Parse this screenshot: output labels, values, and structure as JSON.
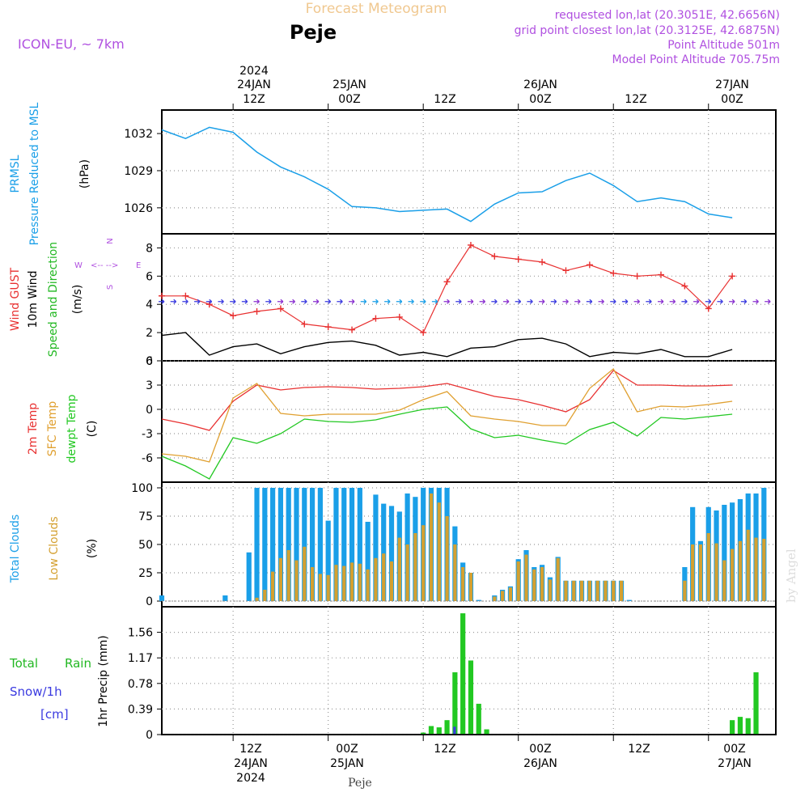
{
  "header": {
    "title": "Forecast Meteogram",
    "location": "Peje",
    "model": "ICON-EU, ~ 7km",
    "requested": "requested lon,lat (20.3051E, 42.6656N)",
    "grid": "grid point closest lon,lat (20.3125E, 42.6875N)",
    "point_alt": "Point Altitude 501m",
    "model_alt": "Model Point Altitude 705.75m",
    "footer": "Peje",
    "credit": "by Angel"
  },
  "time_axis": {
    "top_labels": [
      {
        "l1": "2024",
        "l2": "24JAN",
        "l3": "12Z"
      },
      {
        "l1": "",
        "l2": "25JAN",
        "l3": "00Z"
      },
      {
        "l1": "",
        "l2": "",
        "l3": "12Z"
      },
      {
        "l1": "",
        "l2": "26JAN",
        "l3": "00Z"
      },
      {
        "l1": "",
        "l2": "",
        "l3": "12Z"
      },
      {
        "l1": "",
        "l2": "27JAN",
        "l3": "00Z"
      }
    ],
    "bottom_labels": [
      {
        "l1": "12Z",
        "l2": "24JAN",
        "l3": "2024"
      },
      {
        "l1": "00Z",
        "l2": "25JAN",
        "l3": ""
      },
      {
        "l1": "12Z",
        "l2": "",
        "l3": ""
      },
      {
        "l1": "00Z",
        "l2": "26JAN",
        "l3": ""
      },
      {
        "l1": "12Z",
        "l2": "",
        "l3": ""
      },
      {
        "l1": "00Z",
        "l2": "27JAN",
        "l3": ""
      }
    ]
  },
  "panels": {
    "pressure": {
      "labels": [
        "PRMSL",
        "Pressure Reduced to MSL",
        "(hPa)"
      ],
      "colors": [
        "#1a9fe8",
        "#1a9fe8",
        "#000000"
      ]
    },
    "wind": {
      "labels": [
        "Wind GUST",
        "10m Wind",
        "Speed and Direction",
        "(m/s)"
      ],
      "colors": [
        "#e83030",
        "#000000",
        "#22b822",
        "#000000"
      ],
      "compass": {
        "n": "N",
        "s": "S",
        "w": "W",
        "e": "E"
      }
    },
    "temp": {
      "labels": [
        "2m Temp",
        "SFC Temp",
        "dewpt Temp",
        "(C)"
      ],
      "colors": [
        "#e83030",
        "#e0a030",
        "#22c822",
        "#000000"
      ]
    },
    "clouds": {
      "labels": [
        "Total Clouds",
        "Low Clouds",
        "(%)"
      ],
      "colors": [
        "#1a9fe8",
        "#d4a030",
        "#000000"
      ]
    },
    "precip": {
      "labels": [
        "Total",
        "Rain",
        "Snow/1h",
        "[cm]",
        "1hr Precip (mm)"
      ],
      "colors": [
        "#22b822",
        "#22b822",
        "#3a3ae0",
        "#3a3ae0",
        "#000000"
      ]
    }
  },
  "colors": {
    "pressure": "#1a9fe8",
    "gust": "#e83030",
    "wind": "#000000",
    "t2m": "#e83030",
    "sfc": "#e0a030",
    "dewpt": "#22c822",
    "total_clouds": "#1a9fe8",
    "low_clouds": "#d4a030",
    "rain": "#22c822",
    "snow": "#3a3ae0",
    "title": "#f0c890",
    "header_purple": "#b050e0"
  },
  "chart_data": [
    {
      "type": "line",
      "name": "PRMSL",
      "ylabel": "(hPa)",
      "ylim": [
        1023.9,
        1033.9
      ],
      "yticks": [
        1026,
        1029,
        1032
      ],
      "x_hours": [
        0,
        3,
        6,
        9,
        12,
        15,
        18,
        21,
        24,
        27,
        30,
        33,
        36,
        39,
        42,
        45,
        48,
        51,
        54,
        57,
        60,
        63,
        66,
        69,
        72
      ],
      "series": [
        {
          "name": "PRMSL",
          "values": [
            1032.3,
            1031.6,
            1032.5,
            1032.1,
            1030.5,
            1029.3,
            1028.5,
            1027.5,
            1026.1,
            1026.0,
            1025.7,
            1025.8,
            1025.9,
            1024.9,
            1026.3,
            1027.2,
            1027.3,
            1028.2,
            1028.8,
            1027.8,
            1026.5,
            1026.8,
            1026.5,
            1025.5,
            1025.2
          ]
        }
      ]
    },
    {
      "type": "line",
      "name": "Wind",
      "ylabel": "(m/s)",
      "ylim": [
        0,
        9
      ],
      "yticks": [
        0,
        2,
        4,
        6,
        8
      ],
      "x_hours": [
        0,
        3,
        6,
        9,
        12,
        15,
        18,
        21,
        24,
        27,
        30,
        33,
        36,
        39,
        42,
        45,
        48,
        51,
        54,
        57,
        60,
        63,
        66,
        69,
        72
      ],
      "series": [
        {
          "name": "Wind GUST",
          "values": [
            4.6,
            4.6,
            4.0,
            3.2,
            3.5,
            3.7,
            2.6,
            2.4,
            2.2,
            3.0,
            3.1,
            2.0,
            5.6,
            8.2,
            7.4,
            7.2,
            7.0,
            6.4,
            6.8,
            6.2,
            6.0,
            6.1,
            5.3,
            3.7,
            6.0
          ]
        },
        {
          "name": "10m Wind",
          "values": [
            1.8,
            2.0,
            0.4,
            1.0,
            1.2,
            0.5,
            1.0,
            1.3,
            1.4,
            1.1,
            0.4,
            0.6,
            0.3,
            0.9,
            1.0,
            1.5,
            1.6,
            1.2,
            0.3,
            0.6,
            0.5,
            0.8,
            0.3,
            0.3,
            0.8
          ]
        }
      ]
    },
    {
      "type": "line",
      "name": "Temperature",
      "ylabel": "(C)",
      "ylim": [
        -9,
        6
      ],
      "yticks": [
        -6,
        -3,
        0,
        3,
        6
      ],
      "x_hours": [
        0,
        3,
        6,
        9,
        12,
        15,
        18,
        21,
        24,
        27,
        30,
        33,
        36,
        39,
        42,
        45,
        48,
        51,
        54,
        57,
        60,
        63,
        66,
        69,
        72
      ],
      "series": [
        {
          "name": "2m Temp",
          "values": [
            -1.2,
            -1.8,
            -2.6,
            1.0,
            3.0,
            2.4,
            2.7,
            2.8,
            2.7,
            2.5,
            2.6,
            2.8,
            3.2,
            2.4,
            1.6,
            1.2,
            0.5,
            -0.3,
            1.2,
            4.8,
            3.0,
            3.0,
            2.9,
            2.9,
            3.0
          ]
        },
        {
          "name": "SFC Temp",
          "values": [
            -5.5,
            -5.8,
            -6.5,
            1.4,
            3.2,
            -0.5,
            -0.8,
            -0.6,
            -0.6,
            -0.6,
            -0.1,
            1.2,
            2.2,
            -0.8,
            -1.2,
            -1.5,
            -2.0,
            -2.0,
            2.6,
            5.0,
            -0.3,
            0.4,
            0.3,
            0.6,
            1.0
          ]
        },
        {
          "name": "dewpt Temp",
          "values": [
            -5.8,
            -7.0,
            -8.6,
            -3.5,
            -4.2,
            -3.0,
            -1.2,
            -1.5,
            -1.6,
            -1.3,
            -0.6,
            0.0,
            0.3,
            -2.4,
            -3.5,
            -3.2,
            -3.8,
            -4.3,
            -2.5,
            -1.6,
            -3.3,
            -1.0,
            -1.2,
            -0.9,
            -0.6
          ]
        }
      ]
    },
    {
      "type": "bar",
      "name": "Clouds",
      "ylabel": "(%)",
      "ylim": [
        -5,
        105
      ],
      "yticks": [
        0,
        25,
        50,
        75,
        100
      ],
      "x_hours": [
        0,
        1,
        2,
        3,
        4,
        5,
        6,
        7,
        8,
        9,
        10,
        11,
        12,
        13,
        14,
        15,
        16,
        17,
        18,
        19,
        20,
        21,
        22,
        23,
        24,
        25,
        26,
        27,
        28,
        29,
        30,
        31,
        32,
        33,
        34,
        35,
        36,
        37,
        38,
        39,
        40,
        41,
        42,
        43,
        44,
        45,
        46,
        47,
        48,
        49,
        50,
        51,
        52,
        53,
        54,
        55,
        56,
        57,
        58,
        59,
        60,
        61,
        62,
        63,
        64,
        65,
        66,
        67,
        68,
        69,
        70,
        71,
        72,
        73,
        74,
        75,
        76
      ],
      "series": [
        {
          "name": "Total Clouds",
          "values": [
            5,
            0,
            0,
            0,
            0,
            0,
            0,
            0,
            5,
            0,
            0,
            43,
            100,
            100,
            100,
            100,
            100,
            100,
            100,
            100,
            100,
            71,
            100,
            100,
            100,
            100,
            70,
            94,
            86,
            84,
            79,
            95,
            92,
            100,
            100,
            100,
            100,
            66,
            34,
            25,
            1,
            0,
            5,
            10,
            13,
            37,
            45,
            30,
            32,
            21,
            39,
            18,
            18,
            18,
            18,
            18,
            18,
            18,
            18,
            1,
            0,
            0,
            0,
            0,
            0,
            0,
            30,
            83,
            53,
            83,
            80,
            85,
            87,
            90,
            95,
            95,
            100
          ]
        },
        {
          "name": "Low Clouds",
          "values": [
            0,
            0,
            0,
            0,
            0,
            0,
            0,
            0,
            0,
            0,
            0,
            0,
            3,
            10,
            26,
            38,
            45,
            36,
            48,
            30,
            24,
            23,
            32,
            31,
            34,
            33,
            28,
            38,
            42,
            35,
            56,
            50,
            60,
            67,
            95,
            87,
            75,
            50,
            30,
            25,
            0,
            0,
            4,
            9,
            12,
            35,
            41,
            28,
            30,
            19,
            38,
            18,
            18,
            18,
            18,
            18,
            18,
            18,
            18,
            0,
            0,
            0,
            0,
            0,
            0,
            0,
            18,
            50,
            50,
            60,
            51,
            36,
            46,
            53,
            63,
            56,
            55
          ]
        }
      ]
    },
    {
      "type": "bar",
      "name": "Precipitation",
      "ylabel": "1hr Precip (mm)",
      "ylim": [
        0,
        1.95
      ],
      "yticks": [
        0,
        0.39,
        0.78,
        1.17,
        1.56
      ],
      "x_hours": [
        0,
        1,
        2,
        3,
        4,
        5,
        6,
        7,
        8,
        9,
        10,
        11,
        12,
        13,
        14,
        15,
        16,
        17,
        18,
        19,
        20,
        21,
        22,
        23,
        24,
        25,
        26,
        27,
        28,
        29,
        30,
        31,
        32,
        33,
        34,
        35,
        36,
        37,
        38,
        39,
        40,
        41,
        42,
        43,
        44,
        45,
        46,
        47,
        48,
        49,
        50,
        51,
        52,
        53,
        54,
        55,
        56,
        57,
        58,
        59,
        60,
        61,
        62,
        63,
        64,
        65,
        66,
        67,
        68,
        69,
        70,
        71,
        72,
        73,
        74,
        75,
        76
      ],
      "series": [
        {
          "name": "Rain",
          "values": [
            0,
            0,
            0,
            0,
            0,
            0,
            0,
            0,
            0,
            0,
            0,
            0,
            0,
            0,
            0,
            0,
            0,
            0,
            0,
            0,
            0,
            0,
            0,
            0,
            0,
            0,
            0,
            0,
            0,
            0,
            0,
            0,
            0,
            0.03,
            0.13,
            0.11,
            0.22,
            0.95,
            1.85,
            1.13,
            0.47,
            0.08,
            0,
            0,
            0,
            0,
            0,
            0,
            0,
            0,
            0,
            0,
            0,
            0,
            0,
            0,
            0,
            0,
            0,
            0,
            0,
            0,
            0,
            0,
            0,
            0,
            0,
            0,
            0,
            0,
            0,
            0,
            0.22,
            0.27,
            0.25,
            0.95,
            0
          ]
        },
        {
          "name": "Snow/1h",
          "values": [
            0,
            0,
            0,
            0,
            0,
            0,
            0,
            0,
            0,
            0,
            0,
            0,
            0,
            0,
            0,
            0,
            0,
            0,
            0,
            0,
            0,
            0,
            0,
            0,
            0,
            0,
            0,
            0,
            0,
            0,
            0,
            0,
            0,
            0,
            0,
            0,
            0,
            0.12,
            0,
            0,
            0,
            0,
            0,
            0,
            0,
            0,
            0,
            0,
            0,
            0,
            0,
            0,
            0,
            0,
            0,
            0,
            0,
            0,
            0,
            0,
            0,
            0,
            0,
            0,
            0,
            0,
            0,
            0,
            0,
            0,
            0,
            0,
            0,
            0,
            0,
            0,
            0
          ]
        }
      ]
    }
  ]
}
